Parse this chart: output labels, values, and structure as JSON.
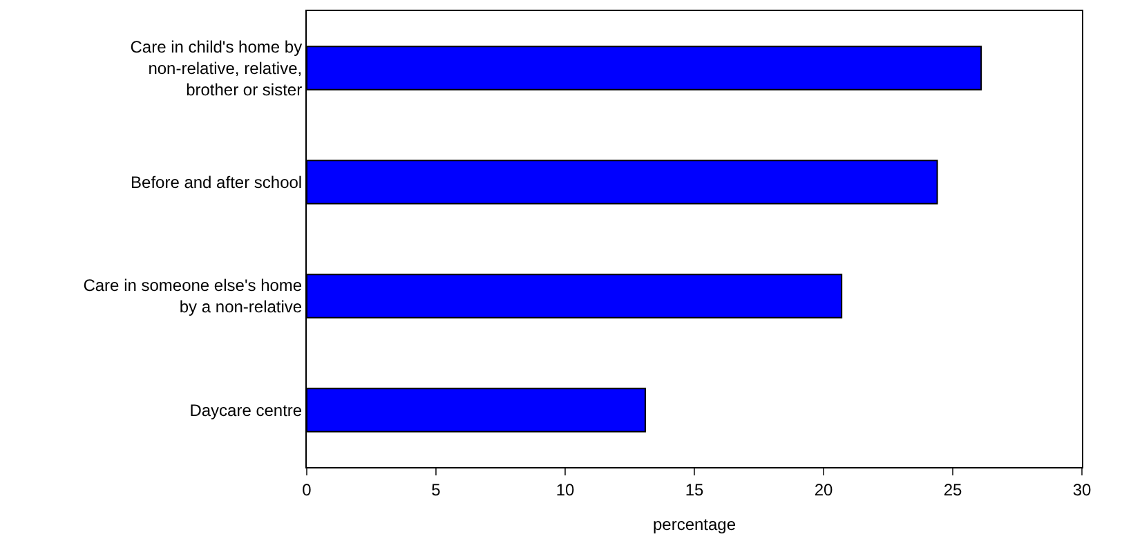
{
  "chart_data": {
    "type": "bar",
    "orientation": "horizontal",
    "xlabel": "percentage",
    "categories": [
      "Care in child's home by non-relative, relative, brother or sister",
      "Before and after school",
      "Care in someone else's home by a non-relative",
      "Daycare centre"
    ],
    "values": [
      26.1,
      24.4,
      20.7,
      13.1
    ],
    "color": "#0000ff",
    "xlim": [
      0,
      30
    ],
    "xticks": [
      0,
      5,
      10,
      15,
      20,
      25,
      30
    ],
    "grid": false
  }
}
